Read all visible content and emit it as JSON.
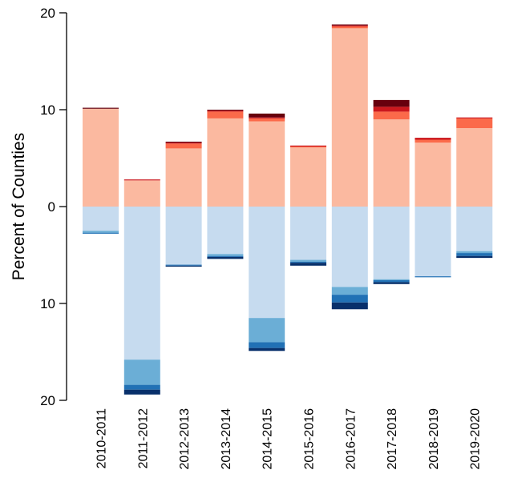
{
  "chart_data": {
    "type": "bar",
    "stacked": true,
    "diverging": true,
    "title": "",
    "xlabel": "",
    "ylabel": "Percent of Counties",
    "ylim": [
      -20,
      20
    ],
    "y_ticks": [
      {
        "value": 20,
        "label": "20"
      },
      {
        "value": 10,
        "label": "10"
      },
      {
        "value": 0,
        "label": "0"
      },
      {
        "value": -10,
        "label": "10"
      },
      {
        "value": -20,
        "label": "20"
      }
    ],
    "grid": false,
    "legend": "none",
    "categories": [
      "2010-2011",
      "2011-2012",
      "2012-2013",
      "2013-2014",
      "2014-2015",
      "2015-2016",
      "2016-2017",
      "2017-2018",
      "2018-2019",
      "2019-2020"
    ],
    "series": [
      {
        "side": "positive",
        "color": "#FBB9A0",
        "values": [
          10.1,
          2.7,
          6.0,
          9.1,
          8.8,
          6.1,
          18.4,
          9.0,
          6.6,
          8.1
        ]
      },
      {
        "side": "positive",
        "color": "#FB6A4A",
        "values": [
          0.0,
          0.0,
          0.5,
          0.7,
          0.3,
          0.1,
          0.2,
          0.8,
          0.3,
          1.0
        ]
      },
      {
        "side": "positive",
        "color": "#CB181D",
        "values": [
          0.0,
          0.1,
          0.1,
          0.1,
          0.1,
          0.1,
          0.1,
          0.5,
          0.2,
          0.1
        ]
      },
      {
        "side": "positive",
        "color": "#67000D",
        "values": [
          0.1,
          0.0,
          0.1,
          0.1,
          0.4,
          0.0,
          0.1,
          0.7,
          0.0,
          0.0
        ]
      },
      {
        "side": "negative",
        "color": "#C6DBEF",
        "values": [
          2.5,
          15.8,
          6.0,
          4.9,
          11.5,
          5.5,
          8.3,
          7.5,
          7.2,
          4.6
        ]
      },
      {
        "side": "negative",
        "color": "#6BAED6",
        "values": [
          0.2,
          2.6,
          0.0,
          0.2,
          2.5,
          0.2,
          0.8,
          0.1,
          0.0,
          0.2
        ]
      },
      {
        "side": "negative",
        "color": "#2171B5",
        "values": [
          0.1,
          0.5,
          0.1,
          0.1,
          0.6,
          0.1,
          0.8,
          0.2,
          0.1,
          0.3
        ]
      },
      {
        "side": "negative",
        "color": "#08306B",
        "values": [
          0.0,
          0.5,
          0.1,
          0.2,
          0.3,
          0.3,
          0.7,
          0.2,
          0.0,
          0.2
        ]
      }
    ]
  }
}
